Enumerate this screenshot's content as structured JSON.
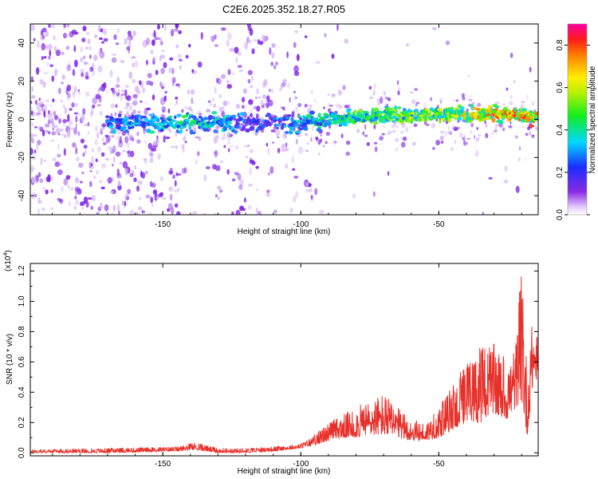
{
  "title": "C2E6.2025.352.18.27.R05",
  "colors": {
    "background": "#ffffff",
    "snr_line": "#e8302a",
    "spec_main": "#7b1fe6",
    "spec_light": "#d6b8f5"
  },
  "chart_data": [
    {
      "type": "heatmap",
      "name": "spectrogram",
      "xlabel": "Height of straight line (km)",
      "ylabel": "Frequency (Hz)",
      "xlim": [
        -198,
        -14
      ],
      "ylim": [
        -50,
        50
      ],
      "x_ticks": [
        -150,
        -100,
        -50
      ],
      "y_ticks": [
        -40,
        -20,
        0,
        20,
        40
      ],
      "colorbar": {
        "label": "Normalized spectral amplitude",
        "range": [
          0.0,
          0.9
        ],
        "ticks": [
          0.0,
          0.2,
          0.4,
          0.6,
          0.8
        ],
        "colormap": "rainbow (violet→blue→cyan→green→yellow→red→magenta)"
      },
      "signal_track": [
        {
          "height_km": -165,
          "frequency_hz": -2,
          "amplitude": 0.35
        },
        {
          "height_km": -140,
          "frequency_hz": -2,
          "amplitude": 0.45
        },
        {
          "height_km": -115,
          "frequency_hz": -2,
          "amplitude": 0.3
        },
        {
          "height_km": -100,
          "frequency_hz": -2,
          "amplitude": 0.4
        },
        {
          "height_km": -90,
          "frequency_hz": 0,
          "amplitude": 0.45
        },
        {
          "height_km": -80,
          "frequency_hz": 1,
          "amplitude": 0.55
        },
        {
          "height_km": -70,
          "frequency_hz": 2,
          "amplitude": 0.55
        },
        {
          "height_km": -60,
          "frequency_hz": 2,
          "amplitude": 0.6
        },
        {
          "height_km": -50,
          "frequency_hz": 3,
          "amplitude": 0.6
        },
        {
          "height_km": -40,
          "frequency_hz": 3,
          "amplitude": 0.7
        },
        {
          "height_km": -30,
          "frequency_hz": 3,
          "amplitude": 0.8
        },
        {
          "height_km": -20,
          "frequency_hz": 2,
          "amplitude": 0.85
        },
        {
          "height_km": -16,
          "frequency_hz": 1,
          "amplitude": 0.75
        }
      ]
    },
    {
      "type": "line",
      "name": "snr",
      "xlabel": "Height of straight line (km)",
      "ylabel": "SNR (10 * v/v)",
      "y_multiplier_label": "(x10",
      "y_multiplier_exp": "4",
      "xlim": [
        -198,
        -14
      ],
      "ylim": [
        -0.02,
        1.25
      ],
      "x_ticks": [
        -150,
        -100,
        -50
      ],
      "y_ticks": [
        "0.0",
        "0.2",
        "0.4",
        "0.6",
        "0.8",
        "1.0",
        "1.2"
      ],
      "envelope": {
        "x": [
          -198,
          -170,
          -145,
          -138,
          -130,
          -120,
          -110,
          -100,
          -95,
          -90,
          -85,
          -80,
          -75,
          -70,
          -65,
          -60,
          -55,
          -50,
          -45,
          -40,
          -35,
          -30,
          -25,
          -22,
          -20,
          -18,
          -16,
          -14
        ],
        "y_peak": [
          0.02,
          0.03,
          0.04,
          0.07,
          0.03,
          0.03,
          0.04,
          0.06,
          0.12,
          0.2,
          0.25,
          0.3,
          0.35,
          0.4,
          0.3,
          0.22,
          0.2,
          0.3,
          0.45,
          0.6,
          0.7,
          0.72,
          0.6,
          0.75,
          1.25,
          0.55,
          0.9,
          0.75
        ],
        "y_base": [
          0.0,
          0.0,
          0.01,
          0.02,
          0.0,
          0.0,
          0.01,
          0.03,
          0.05,
          0.08,
          0.1,
          0.1,
          0.12,
          0.12,
          0.1,
          0.08,
          0.08,
          0.1,
          0.15,
          0.2,
          0.2,
          0.25,
          0.22,
          0.3,
          0.35,
          0.1,
          0.45,
          0.5
        ]
      }
    }
  ]
}
